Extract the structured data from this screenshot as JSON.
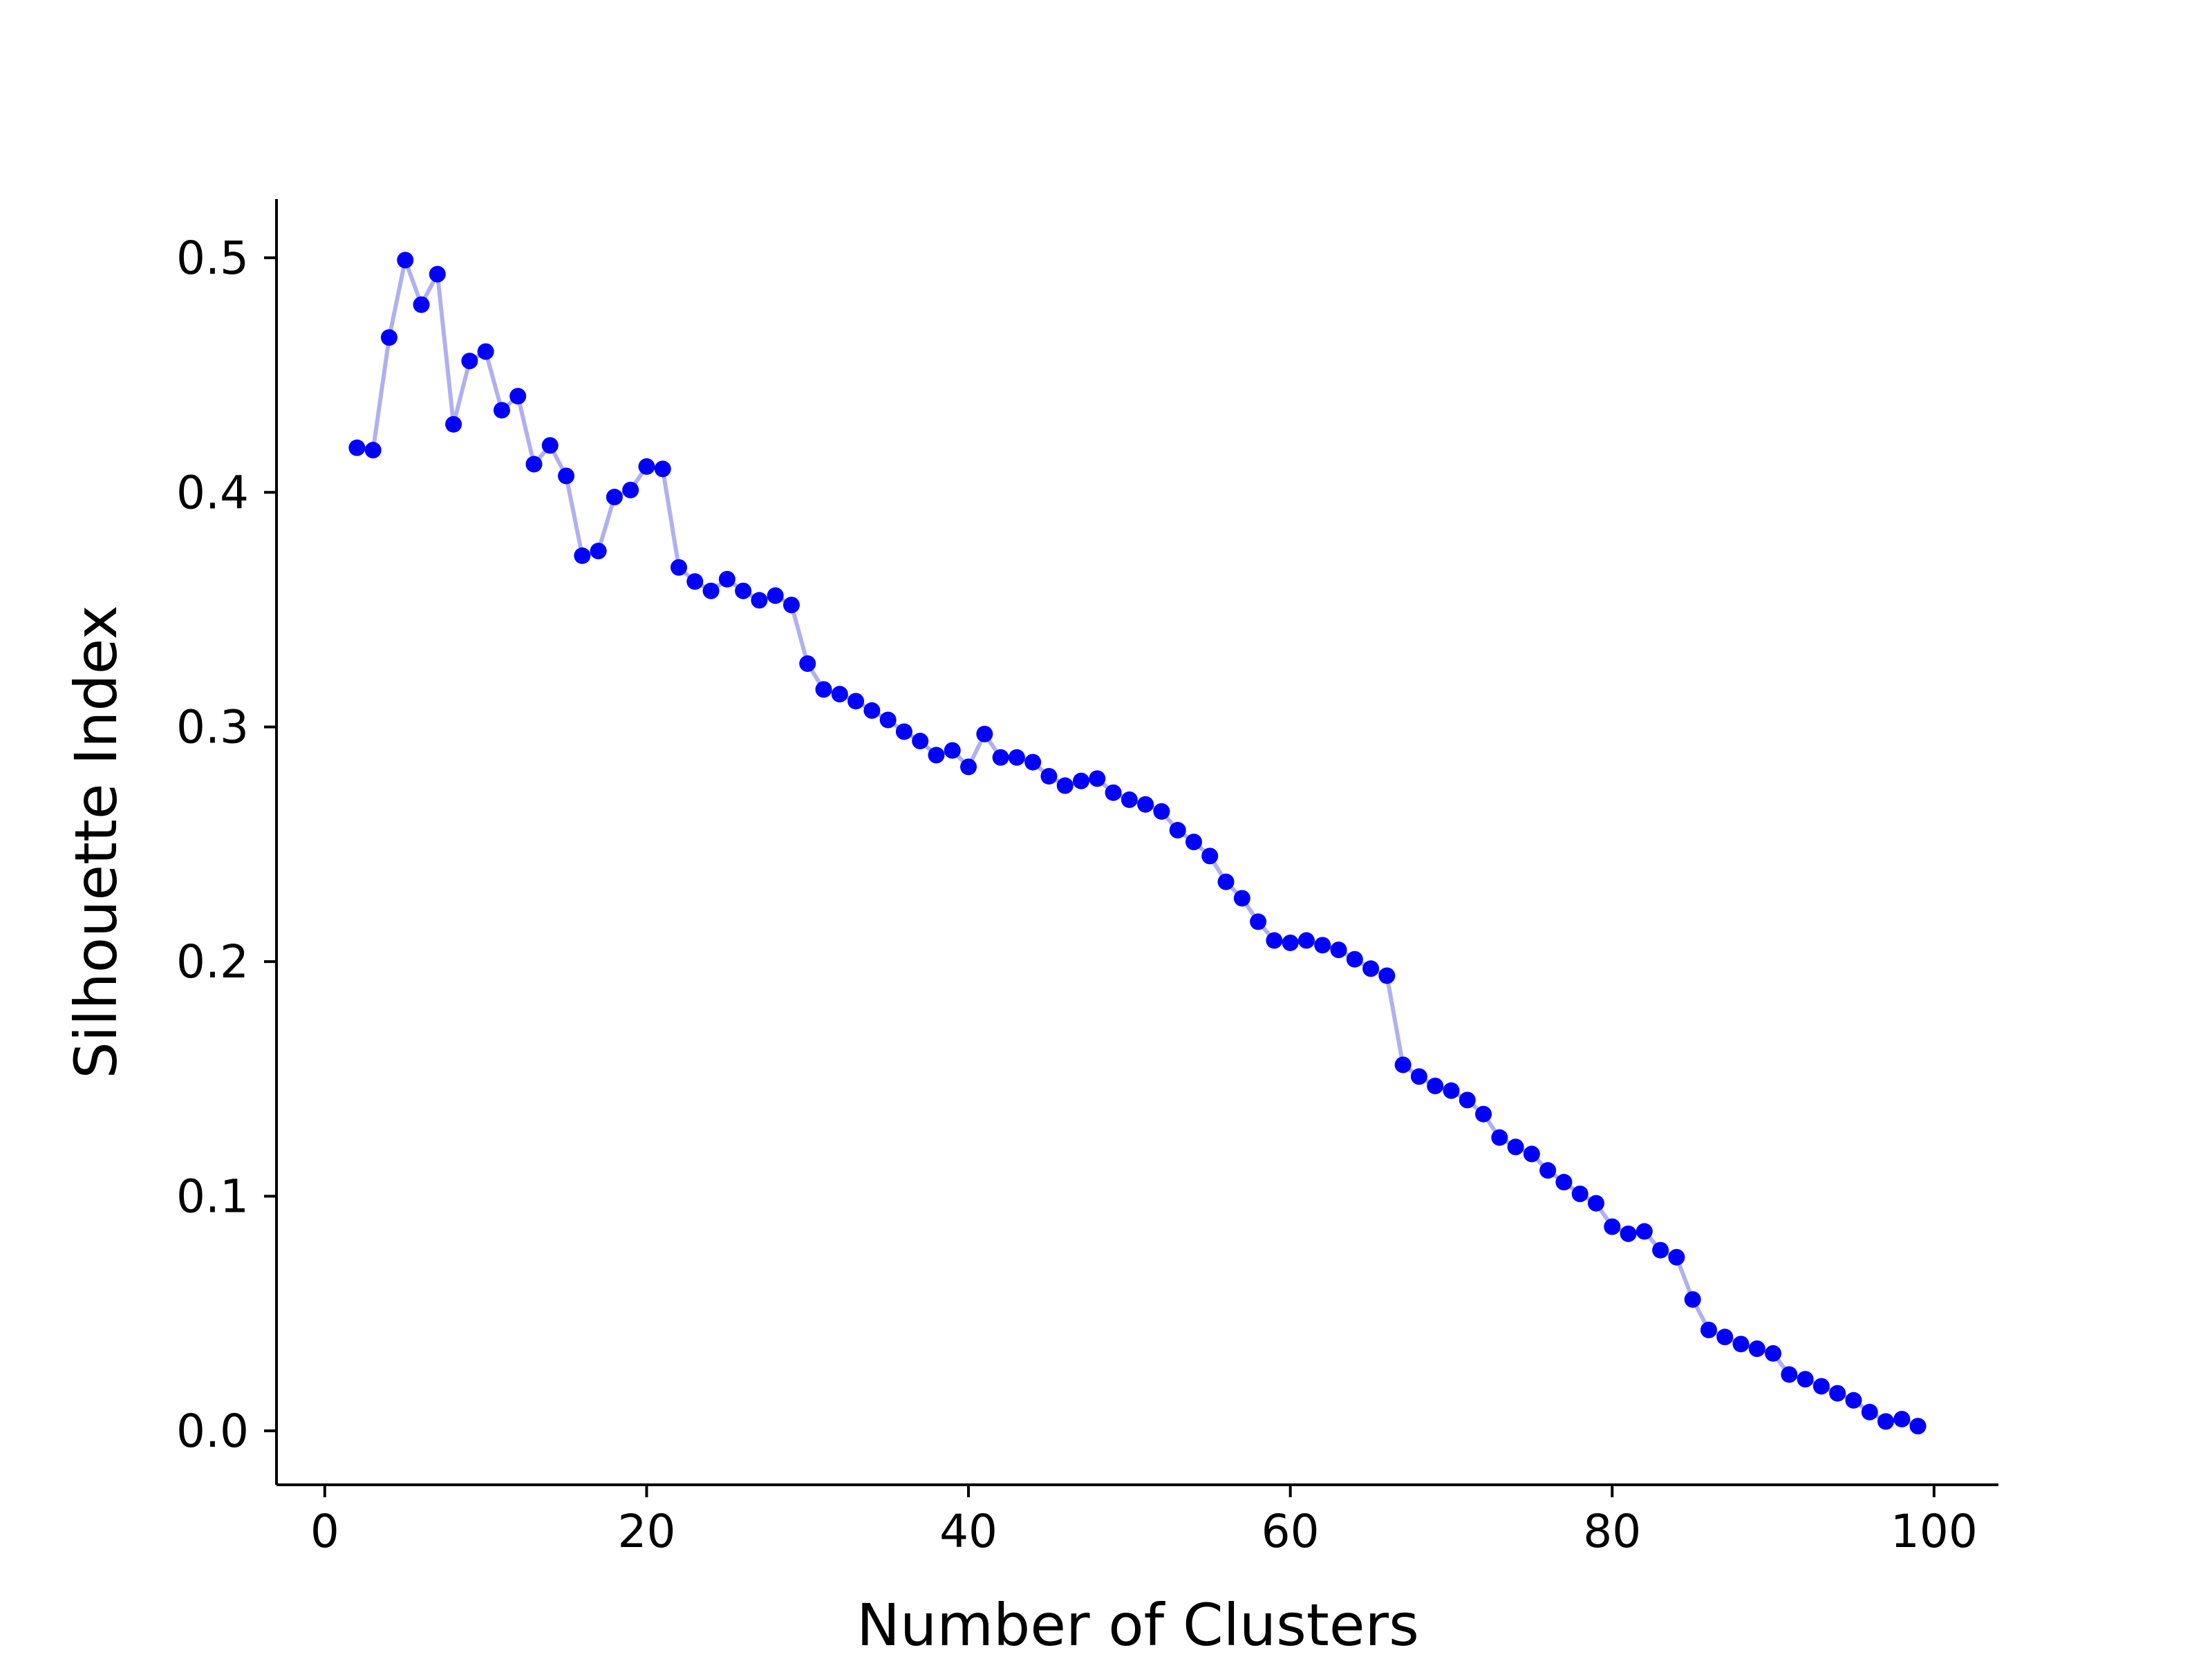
{
  "chart_data": {
    "type": "line",
    "title": "",
    "xlabel": "Number of Clusters",
    "ylabel": "Silhouette Index",
    "xlim": [
      -3,
      104
    ],
    "ylim": [
      -0.023,
      0.525
    ],
    "x_ticks": [
      0,
      20,
      40,
      60,
      80,
      100
    ],
    "x_tick_labels": [
      "0",
      "20",
      "40",
      "60",
      "80",
      "100"
    ],
    "y_ticks": [
      0.0,
      0.1,
      0.2,
      0.3,
      0.4,
      0.5
    ],
    "y_tick_labels": [
      "0.0",
      "0.1",
      "0.2",
      "0.3",
      "0.4",
      "0.5"
    ],
    "grid": false,
    "line_color": "#b0b0f0",
    "marker_color": "#0000ff",
    "series": [
      {
        "x": [
          2,
          3,
          4,
          5,
          6,
          7,
          8,
          9,
          10,
          11,
          12,
          13,
          14,
          15,
          16,
          17,
          18,
          19,
          20,
          21,
          22,
          23,
          24,
          25,
          26,
          27,
          28,
          29,
          30,
          31,
          32,
          33,
          34,
          35,
          36,
          37,
          38,
          39,
          40,
          41,
          42,
          43,
          44,
          45,
          46,
          47,
          48,
          49,
          50,
          51,
          52,
          53,
          54,
          55,
          56,
          57,
          58,
          59,
          60,
          61,
          62,
          63,
          64,
          65,
          66,
          67,
          68,
          69,
          70,
          71,
          72,
          73,
          74,
          75,
          76,
          77,
          78,
          79,
          80,
          81,
          82,
          83,
          84,
          85,
          86,
          87,
          88,
          89,
          90,
          91,
          92,
          93,
          94,
          95,
          96,
          97,
          98,
          99
        ],
        "values": [
          0.419,
          0.418,
          0.466,
          0.499,
          0.48,
          0.493,
          0.429,
          0.456,
          0.46,
          0.435,
          0.441,
          0.412,
          0.42,
          0.407,
          0.373,
          0.375,
          0.398,
          0.401,
          0.411,
          0.41,
          0.368,
          0.362,
          0.358,
          0.363,
          0.358,
          0.354,
          0.356,
          0.352,
          0.327,
          0.316,
          0.314,
          0.311,
          0.307,
          0.303,
          0.298,
          0.294,
          0.288,
          0.29,
          0.283,
          0.297,
          0.287,
          0.287,
          0.285,
          0.279,
          0.275,
          0.277,
          0.278,
          0.272,
          0.269,
          0.267,
          0.264,
          0.256,
          0.251,
          0.245,
          0.234,
          0.227,
          0.217,
          0.209,
          0.208,
          0.209,
          0.207,
          0.205,
          0.201,
          0.197,
          0.194,
          0.156,
          0.151,
          0.147,
          0.145,
          0.141,
          0.135,
          0.125,
          0.121,
          0.118,
          0.111,
          0.106,
          0.101,
          0.097,
          0.087,
          0.084,
          0.085,
          0.077,
          0.074,
          0.056,
          0.043,
          0.04,
          0.037,
          0.035,
          0.033,
          0.024,
          0.022,
          0.019,
          0.016,
          0.013,
          0.008,
          0.004,
          0.005,
          0.002
        ]
      }
    ]
  }
}
